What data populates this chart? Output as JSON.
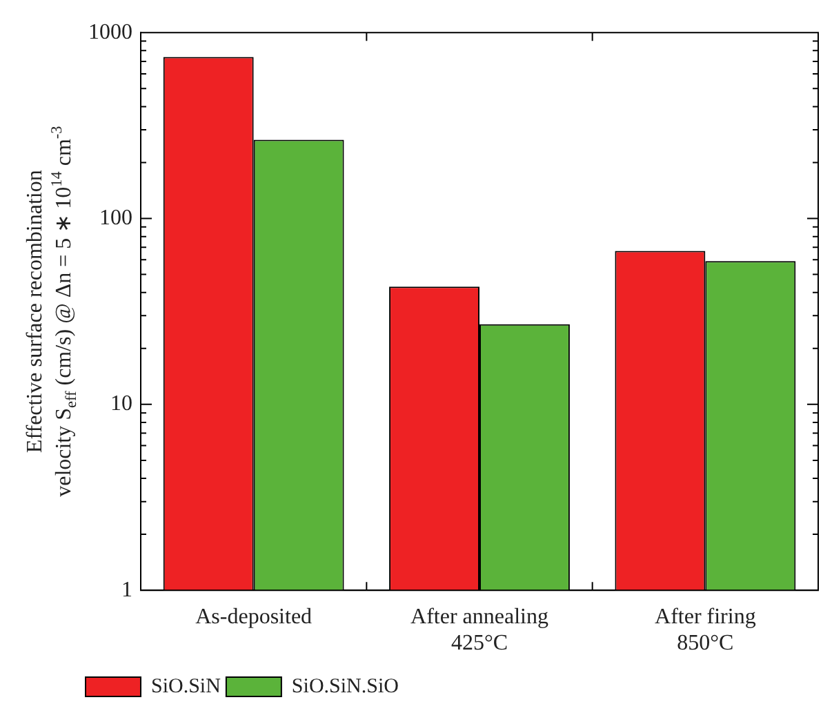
{
  "chart_data": {
    "type": "bar",
    "ylabel": "Effective surface recombination\nvelocity S$_{eff}$ (cm/s) @ Δn = 5 ∗ 10$^{14}$ cm$^{-3}$",
    "categories": [
      "As-deposited",
      "After annealing\n425°C",
      "After firing\n850°C"
    ],
    "series": [
      {
        "name": "SiO.SiN",
        "color": "#ee2224",
        "values": [
          740,
          43,
          67
        ]
      },
      {
        "name": "SiO.SiN.SiO",
        "color": "#5bb33a",
        "values": [
          265,
          27,
          59
        ]
      }
    ],
    "log": true,
    "ylim": [
      1,
      1000
    ],
    "yticks": [
      1,
      10,
      100,
      1000
    ],
    "grid": false,
    "legend": "bottom left"
  }
}
